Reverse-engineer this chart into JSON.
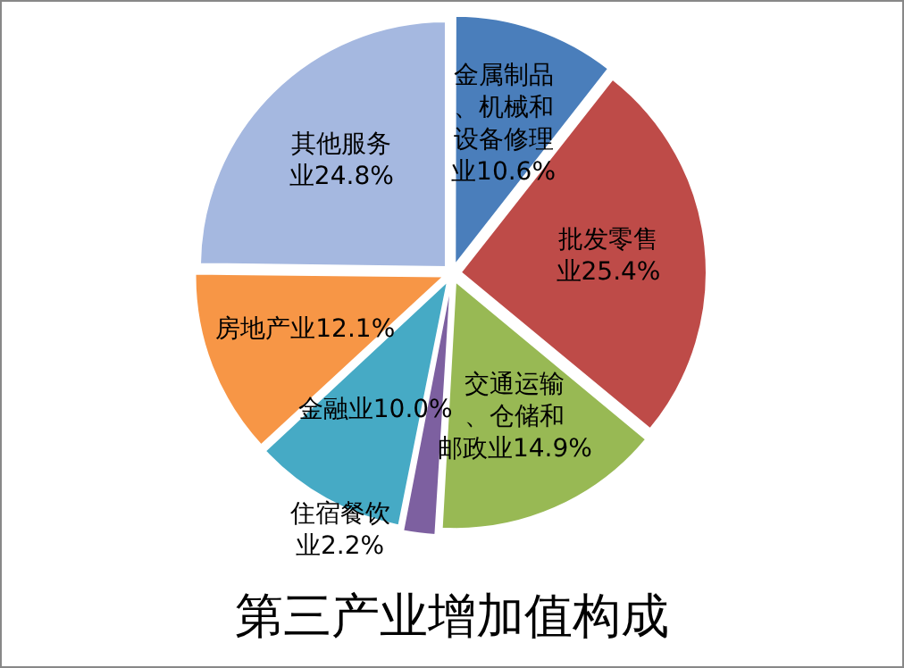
{
  "chart_data": {
    "type": "pie",
    "title": "第三产业增加值构成",
    "categories": [
      "金属制品、机械和设备修理业",
      "批发零售业",
      "交通运输、仓储和邮政业",
      "住宿餐饮业",
      "金融业",
      "房地产业",
      "其他服务业"
    ],
    "values": [
      10.6,
      25.4,
      14.9,
      2.2,
      10.0,
      12.1,
      24.8
    ],
    "value_labels": [
      "10.6%",
      "25.4%",
      "14.9%",
      "2.2%",
      "10.0%",
      "12.1%",
      "24.8%"
    ],
    "colors": [
      "#4a7ebb",
      "#be4b48",
      "#98b954",
      "#7d60a0",
      "#46aac5",
      "#f79646",
      "#a5b8e0"
    ],
    "legend": false
  }
}
